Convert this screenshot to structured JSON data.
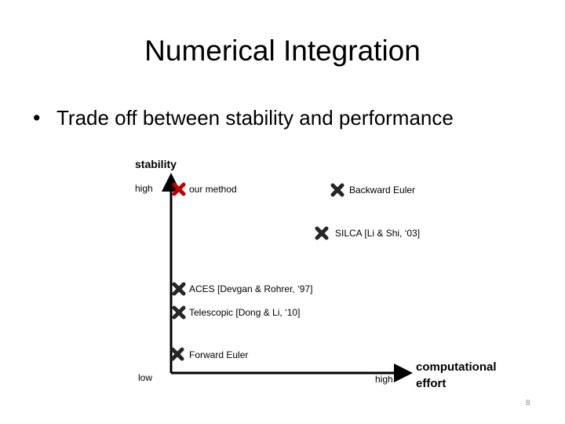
{
  "title": "Numerical Integration",
  "bullet": "Trade off between stability and performance",
  "y_axis": {
    "label": "stability",
    "high": "high",
    "low": "low"
  },
  "x_axis": {
    "label": "computational effort",
    "high": "high"
  },
  "points": [
    {
      "label": "our method"
    },
    {
      "label": "Backward Euler"
    },
    {
      "label": "SILCA [Li & Shi, ‘03]"
    },
    {
      "label": "ACES [Devgan & Rohrer, ‘97]"
    },
    {
      "label": "Telescopic [Dong & Li, ‘10]"
    },
    {
      "label": "Forward Euler"
    }
  ],
  "page_number": "8"
}
